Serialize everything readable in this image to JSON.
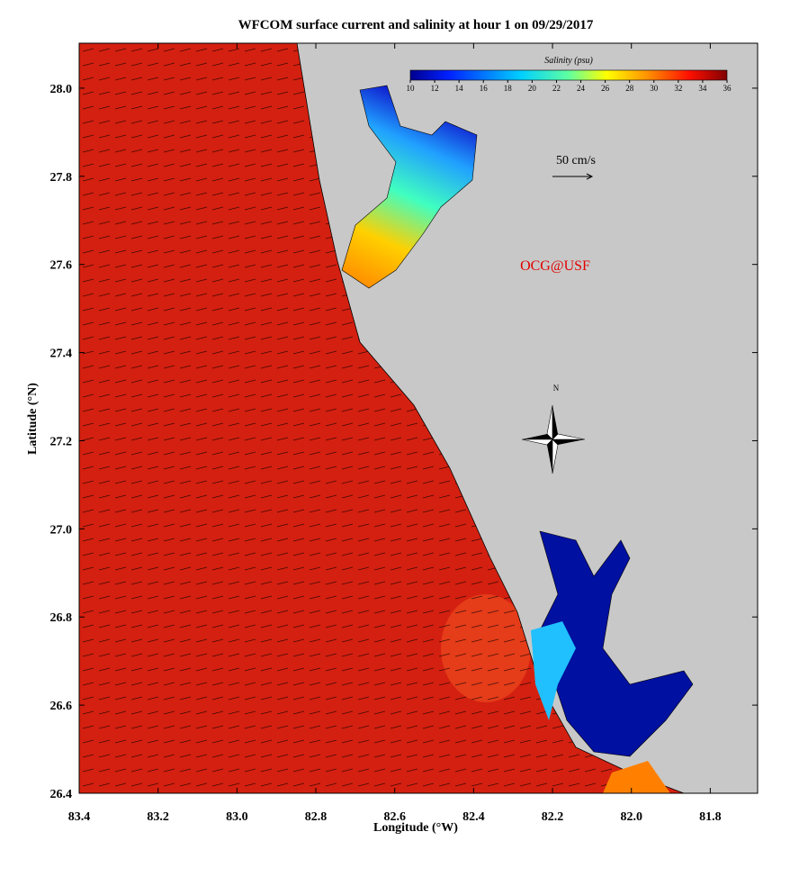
{
  "title": "WFCOM surface current and salinity at hour 1 on 09/29/2017",
  "x_axis": {
    "label": "Longitude (°W)",
    "lim": [
      83.4,
      81.68
    ],
    "ticks": [
      83.4,
      83.2,
      {
        "value": 83.0,
        "label": "83.0"
      },
      82.8,
      82.6,
      82.4,
      82.2,
      {
        "value": 82.0,
        "label": "82.0"
      },
      81.8
    ]
  },
  "y_axis": {
    "label": "Latitude (°N)",
    "lim": [
      26.4,
      28.102
    ],
    "ticks": [
      {
        "value": 26.4,
        "label": "26.4"
      },
      {
        "value": 26.6,
        "label": "26.6"
      },
      {
        "value": 26.8,
        "label": "26.8"
      },
      {
        "value": 27.0,
        "label": "27.0"
      },
      {
        "value": 27.2,
        "label": "27.2"
      },
      {
        "value": 27.4,
        "label": "27.4"
      },
      {
        "value": 27.6,
        "label": "27.6"
      },
      {
        "value": 27.8,
        "label": "27.8"
      },
      {
        "value": 28.0,
        "label": "28.0"
      }
    ]
  },
  "colorbar": {
    "title": "Salinity (psu)",
    "lim": [
      10,
      36
    ],
    "ticks": [
      10,
      12,
      14,
      16,
      18,
      20,
      22,
      24,
      26,
      28,
      30,
      32,
      34,
      36
    ]
  },
  "scale_label": "50 cm/s",
  "credit": "OCG@USF",
  "north_label": "N"
}
